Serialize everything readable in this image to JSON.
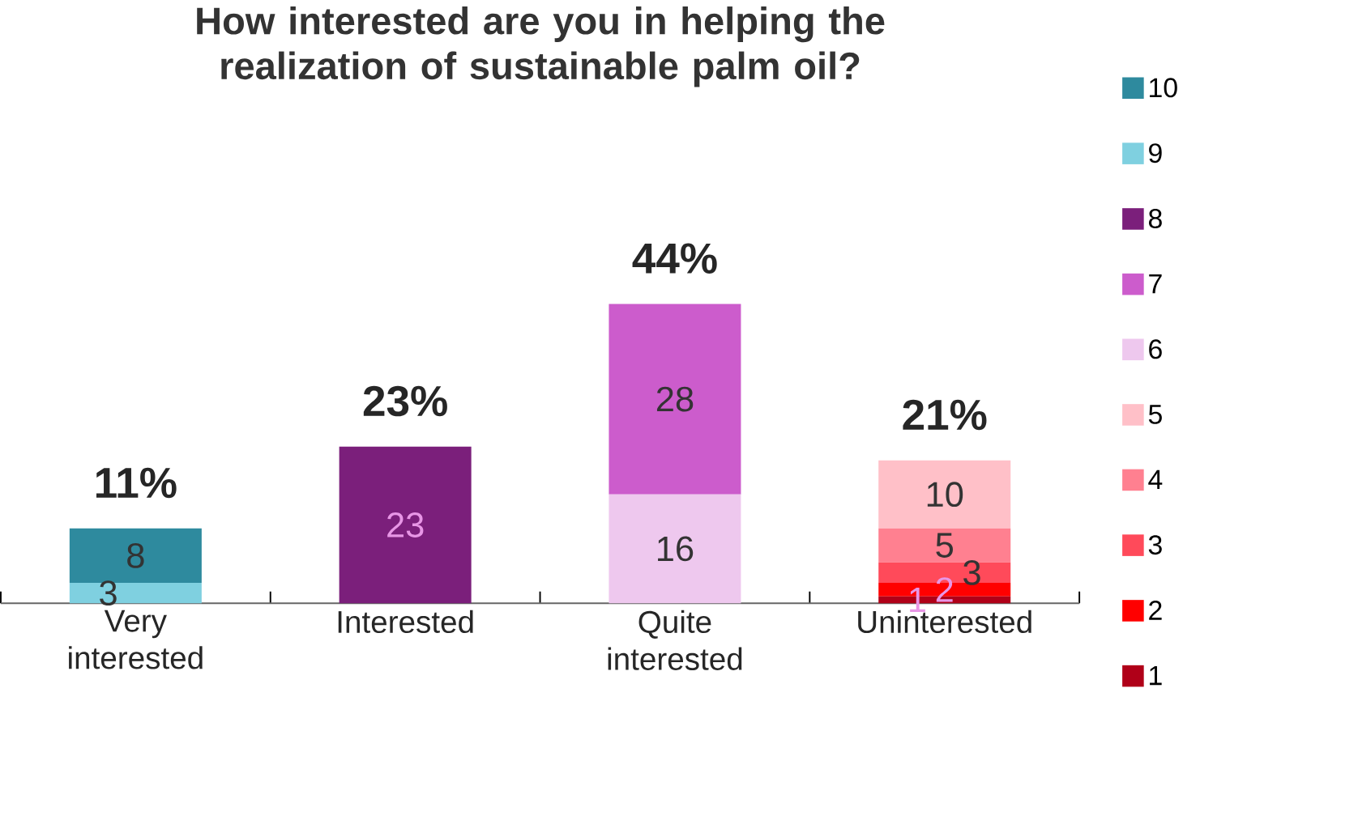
{
  "chart_data": {
    "type": "bar",
    "stacked": true,
    "title": "How interested are you in helping the realization of sustainable palm oil?",
    "categories": [
      "Very interested",
      "Interested",
      "Quite interested",
      "Uninterested"
    ],
    "series": [
      {
        "name": "1",
        "color": "#b00018",
        "values": [
          null,
          null,
          null,
          1
        ]
      },
      {
        "name": "2",
        "color": "#ff0000",
        "values": [
          null,
          null,
          null,
          2
        ]
      },
      {
        "name": "3",
        "color": "#ff4a5a",
        "values": [
          null,
          null,
          null,
          3
        ]
      },
      {
        "name": "4",
        "color": "#ff8090",
        "values": [
          null,
          null,
          null,
          5
        ]
      },
      {
        "name": "5",
        "color": "#ffc0c8",
        "values": [
          null,
          null,
          null,
          10
        ]
      },
      {
        "name": "6",
        "color": "#eec8ee",
        "values": [
          null,
          null,
          16,
          null
        ]
      },
      {
        "name": "7",
        "color": "#cc5ccc",
        "values": [
          null,
          null,
          28,
          null
        ]
      },
      {
        "name": "8",
        "color": "#7b1f7b",
        "values": [
          null,
          23,
          null,
          null
        ]
      },
      {
        "name": "9",
        "color": "#7fd0e0",
        "values": [
          3,
          null,
          null,
          null
        ]
      },
      {
        "name": "10",
        "color": "#2e8a9e",
        "values": [
          8,
          null,
          null,
          null
        ]
      }
    ],
    "data_labels": true,
    "totals": [
      "11%",
      "23%",
      "44%",
      "21%"
    ],
    "legend": "right"
  }
}
